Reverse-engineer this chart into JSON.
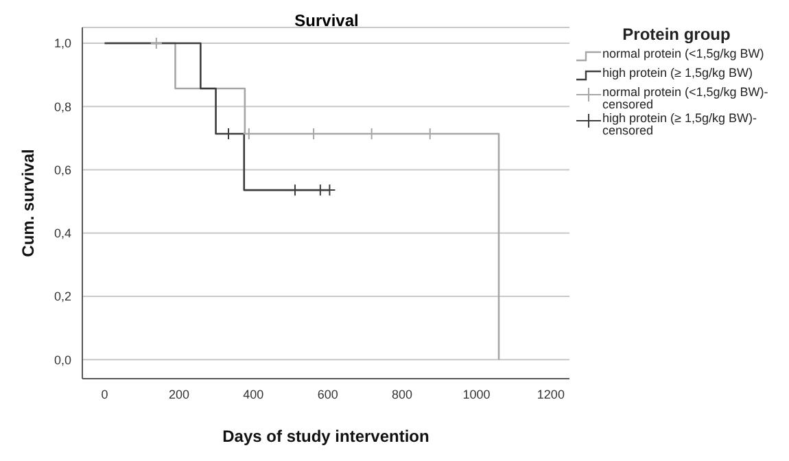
{
  "chart_data": {
    "type": "step",
    "title": "Survival",
    "xlabel": "Days of study intervention",
    "ylabel": "Cum. survival",
    "legend_title": "Protein group",
    "legend": "top right",
    "grid": "y",
    "line_style": "solid",
    "xlim": [
      -60,
      1250
    ],
    "xticks": [
      0,
      200,
      400,
      600,
      800,
      1000,
      1200
    ],
    "ylim": [
      -0.06,
      1.05
    ],
    "yticks": [
      {
        "value": 0,
        "label": "0,0"
      },
      {
        "value": 0.2,
        "label": "0,2"
      },
      {
        "value": 0.4,
        "label": "0,4"
      },
      {
        "value": 0.6,
        "label": "0,6"
      },
      {
        "value": 0.8,
        "label": "0,8"
      },
      {
        "value": 1,
        "label": "1,0"
      }
    ],
    "series": [
      {
        "name": "normal protein (<1,5g/kg BW)",
        "color": "#a6a6a6",
        "x": [
          0,
          190,
          377,
          1060
        ],
        "values": [
          1,
          0.857,
          0.714,
          0
        ]
      },
      {
        "name": "high protein (≥ 1,5g/kg BW)",
        "color": "#3c3c3c",
        "x": [
          0,
          258,
          299,
          375,
          605
        ],
        "values": [
          1,
          0.857,
          0.714,
          0.536,
          0.536
        ]
      },
      {
        "name": "normal protein (<1,5g/kg BW)-censored",
        "type": "scatter",
        "marker": "cross",
        "color": "#a6a6a6",
        "x": [
          139,
          388,
          562,
          718,
          875
        ],
        "values": [
          1,
          0.714,
          0.714,
          0.714,
          0.714
        ]
      },
      {
        "name": "high protein (≥ 1,5g/kg BW)-censored",
        "type": "scatter",
        "marker": "cross",
        "color": "#3c3c3c",
        "x": [
          333,
          512,
          580,
          605
        ],
        "values": [
          0.714,
          0.536,
          0.536,
          0.536
        ]
      }
    ]
  }
}
